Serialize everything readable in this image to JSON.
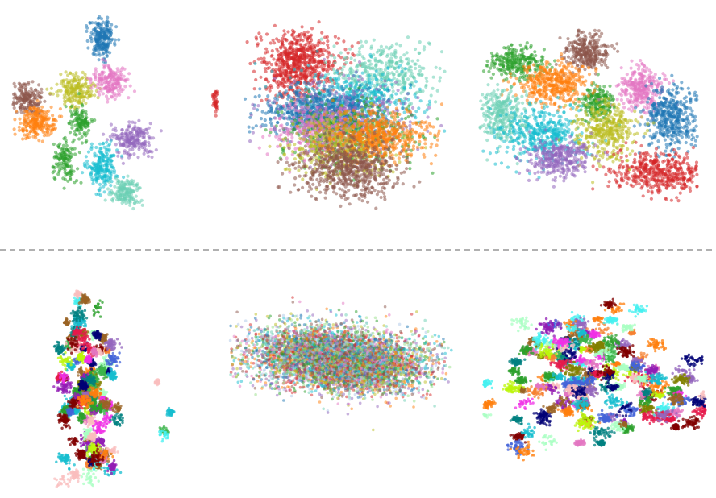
{
  "figure": {
    "divider_color": "#b0b0b0"
  },
  "palette": [
    "#1f77b4",
    "#ff7f0e",
    "#2ca02c",
    "#d62728",
    "#9467bd",
    "#8c564b",
    "#e377c2",
    "#bcbd22",
    "#17becf",
    "#6ccfb4"
  ],
  "chart_data": [
    {
      "type": "scatter",
      "xlim": [
        0,
        100
      ],
      "ylim": [
        0,
        100
      ],
      "grid": false,
      "axes": false,
      "series": [
        {
          "color": "#1f77b4",
          "clusters": [
            {
              "x": 43,
              "y": 89,
              "sx": 3,
              "sy": 5,
              "n": 220
            }
          ]
        },
        {
          "color": "#8c564b",
          "clusters": [
            {
              "x": 7,
              "y": 57,
              "sx": 3.5,
              "sy": 4,
              "n": 180
            }
          ]
        },
        {
          "color": "#ff7f0e",
          "clusters": [
            {
              "x": 12,
              "y": 45,
              "sx": 4.5,
              "sy": 4,
              "n": 230
            }
          ]
        },
        {
          "color": "#bcbd22",
          "clusters": [
            {
              "x": 30,
              "y": 62,
              "sx": 4.5,
              "sy": 4,
              "n": 200
            }
          ]
        },
        {
          "color": "#e377c2",
          "clusters": [
            {
              "x": 47,
              "y": 66,
              "sx": 4,
              "sy": 4,
              "n": 190
            }
          ]
        },
        {
          "color": "#2ca02c",
          "clusters": [
            {
              "x": 33,
              "y": 45,
              "sx": 2.5,
              "sy": 4,
              "n": 120
            },
            {
              "x": 25,
              "y": 25,
              "sx": 3,
              "sy": 6,
              "n": 130
            }
          ]
        },
        {
          "color": "#9467bd",
          "clusters": [
            {
              "x": 57,
              "y": 36,
              "sx": 4.5,
              "sy": 4,
              "n": 210
            }
          ]
        },
        {
          "color": "#17becf",
          "clusters": [
            {
              "x": 43,
              "y": 22,
              "sx": 3.5,
              "sy": 6,
              "n": 220
            }
          ]
        },
        {
          "color": "#6ccfb4",
          "clusters": [
            {
              "x": 54,
              "y": 9,
              "sx": 3.5,
              "sy": 4,
              "n": 170
            }
          ]
        },
        {
          "color": "#d62728",
          "clusters": [
            {
              "x": 97,
              "y": 56,
              "sx": 0.6,
              "sy": 3,
              "n": 40
            }
          ]
        }
      ]
    },
    {
      "type": "scatter",
      "xlim": [
        0,
        100
      ],
      "ylim": [
        0,
        100
      ],
      "grid": false,
      "axes": false,
      "series": [
        {
          "color": "#d62728",
          "clusters": [
            {
              "x": 28,
              "y": 74,
              "sx": 9,
              "sy": 8,
              "n": 700
            }
          ]
        },
        {
          "color": "#6ccfb4",
          "clusters": [
            {
              "x": 70,
              "y": 70,
              "sx": 14,
              "sy": 7,
              "n": 380
            }
          ]
        },
        {
          "color": "#17becf",
          "clusters": [
            {
              "x": 55,
              "y": 56,
              "sx": 15,
              "sy": 8,
              "n": 420
            }
          ]
        },
        {
          "color": "#1f77b4",
          "clusters": [
            {
              "x": 38,
              "y": 50,
              "sx": 14,
              "sy": 6,
              "n": 700
            }
          ]
        },
        {
          "color": "#9467bd",
          "clusters": [
            {
              "x": 50,
              "y": 48,
              "sx": 17,
              "sy": 9,
              "n": 350
            }
          ]
        },
        {
          "color": "#2ca02c",
          "clusters": [
            {
              "x": 52,
              "y": 40,
              "sx": 16,
              "sy": 8,
              "n": 420
            }
          ]
        },
        {
          "color": "#e377c2",
          "clusters": [
            {
              "x": 38,
              "y": 41,
              "sx": 11,
              "sy": 6,
              "n": 300
            }
          ]
        },
        {
          "color": "#bcbd22",
          "clusters": [
            {
              "x": 48,
              "y": 33,
              "sx": 13,
              "sy": 7,
              "n": 400
            }
          ]
        },
        {
          "color": "#ff7f0e",
          "clusters": [
            {
              "x": 66,
              "y": 38,
              "sx": 12,
              "sy": 6,
              "n": 520
            }
          ]
        },
        {
          "color": "#8c564b",
          "clusters": [
            {
              "x": 52,
              "y": 22,
              "sx": 12,
              "sy": 7,
              "n": 650
            }
          ]
        }
      ]
    },
    {
      "type": "scatter",
      "xlim": [
        0,
        100
      ],
      "ylim": [
        0,
        100
      ],
      "grid": false,
      "axes": false,
      "series": [
        {
          "color": "#2ca02c",
          "clusters": [
            {
              "x": 17,
              "y": 80,
              "sx": 6,
              "sy": 5,
              "n": 260
            },
            {
              "x": 54,
              "y": 57,
              "sx": 4,
              "sy": 5,
              "n": 200
            }
          ]
        },
        {
          "color": "#8c564b",
          "clusters": [
            {
              "x": 49,
              "y": 86,
              "sx": 5,
              "sy": 5,
              "n": 300
            }
          ]
        },
        {
          "color": "#ff7f0e",
          "clusters": [
            {
              "x": 34,
              "y": 68,
              "sx": 8,
              "sy": 6,
              "n": 420
            }
          ]
        },
        {
          "color": "#e377c2",
          "clusters": [
            {
              "x": 74,
              "y": 65,
              "sx": 5,
              "sy": 6,
              "n": 300
            }
          ]
        },
        {
          "color": "#1f77b4",
          "clusters": [
            {
              "x": 88,
              "y": 48,
              "sx": 6,
              "sy": 9,
              "n": 420
            }
          ]
        },
        {
          "color": "#6ccfb4",
          "clusters": [
            {
              "x": 10,
              "y": 50,
              "sx": 6,
              "sy": 8,
              "n": 320
            }
          ]
        },
        {
          "color": "#17becf",
          "clusters": [
            {
              "x": 28,
              "y": 38,
              "sx": 10,
              "sy": 8,
              "n": 420
            }
          ]
        },
        {
          "color": "#bcbd22",
          "clusters": [
            {
              "x": 58,
              "y": 40,
              "sx": 7,
              "sy": 8,
              "n": 380
            }
          ]
        },
        {
          "color": "#9467bd",
          "clusters": [
            {
              "x": 36,
              "y": 25,
              "sx": 7,
              "sy": 5,
              "n": 330
            }
          ]
        },
        {
          "color": "#d62728",
          "clusters": [
            {
              "x": 82,
              "y": 17,
              "sx": 10,
              "sy": 6,
              "n": 460
            }
          ]
        }
      ]
    },
    {
      "type": "scatter",
      "xlim": [
        0,
        100
      ],
      "ylim": [
        0,
        100
      ],
      "grid": false,
      "axes": false,
      "mode": "fragmented",
      "n": 5000,
      "colors": [
        "#e6194b",
        "#3cb44b",
        "#4363d8",
        "#f58231",
        "#911eb4",
        "#46f0f0",
        "#f032e6",
        "#bcf60c",
        "#fabebe",
        "#008080",
        "#9a6324",
        "#800000",
        "#aaffc3",
        "#808000",
        "#000075",
        "#e377c2",
        "#17becf",
        "#ff7f0e",
        "#2ca02c",
        "#9467bd"
      ],
      "regions": [
        {
          "x": 28,
          "y": 62,
          "sx": 9,
          "sy": 12,
          "w": 3
        },
        {
          "x": 28,
          "y": 40,
          "sx": 10,
          "sy": 8,
          "w": 3
        },
        {
          "x": 27,
          "y": 18,
          "sx": 9,
          "sy": 9,
          "w": 2
        },
        {
          "x": 20,
          "y": 80,
          "sx": 4,
          "sy": 6,
          "w": 1
        },
        {
          "x": 72,
          "y": 55,
          "sx": 2,
          "sy": 3,
          "w": 0.1
        },
        {
          "x": 80,
          "y": 38,
          "sx": 2,
          "sy": 2,
          "w": 0.08
        },
        {
          "x": 74,
          "y": 28,
          "sx": 2,
          "sy": 2,
          "w": 0.08
        }
      ]
    },
    {
      "type": "scatter",
      "xlim": [
        0,
        100
      ],
      "ylim": [
        0,
        100
      ],
      "grid": false,
      "axes": false,
      "mode": "blob",
      "n": 6000,
      "colors": [
        "#1f77b4",
        "#ff7f0e",
        "#2ca02c",
        "#d62728",
        "#9467bd",
        "#8c564b",
        "#e377c2",
        "#bcbd22",
        "#17becf",
        "#6ccfb4",
        "#aec7e8",
        "#98df8a"
      ],
      "regions": [
        {
          "x": 50,
          "y": 52,
          "sx": 20,
          "sy": 10,
          "w": 3
        },
        {
          "x": 35,
          "y": 58,
          "sx": 14,
          "sy": 9,
          "w": 1.5
        },
        {
          "x": 62,
          "y": 45,
          "sx": 14,
          "sy": 8,
          "w": 1.5
        }
      ]
    },
    {
      "type": "scatter",
      "xlim": [
        0,
        100
      ],
      "ylim": [
        0,
        100
      ],
      "grid": false,
      "axes": false,
      "mode": "fragmented",
      "n": 7000,
      "colors": [
        "#e6194b",
        "#3cb44b",
        "#4363d8",
        "#f58231",
        "#911eb4",
        "#46f0f0",
        "#f032e6",
        "#bcf60c",
        "#fabebe",
        "#008080",
        "#9a6324",
        "#800000",
        "#aaffc3",
        "#808000",
        "#000075",
        "#e377c2",
        "#17becf",
        "#ff7f0e",
        "#2ca02c",
        "#9467bd"
      ],
      "regions": [
        {
          "x": 50,
          "y": 50,
          "sx": 26,
          "sy": 17,
          "w": 5
        },
        {
          "x": 28,
          "y": 60,
          "sx": 12,
          "sy": 14,
          "w": 2
        },
        {
          "x": 78,
          "y": 42,
          "sx": 10,
          "sy": 10,
          "w": 2
        },
        {
          "x": 50,
          "y": 80,
          "sx": 14,
          "sy": 6,
          "w": 1
        }
      ]
    }
  ]
}
